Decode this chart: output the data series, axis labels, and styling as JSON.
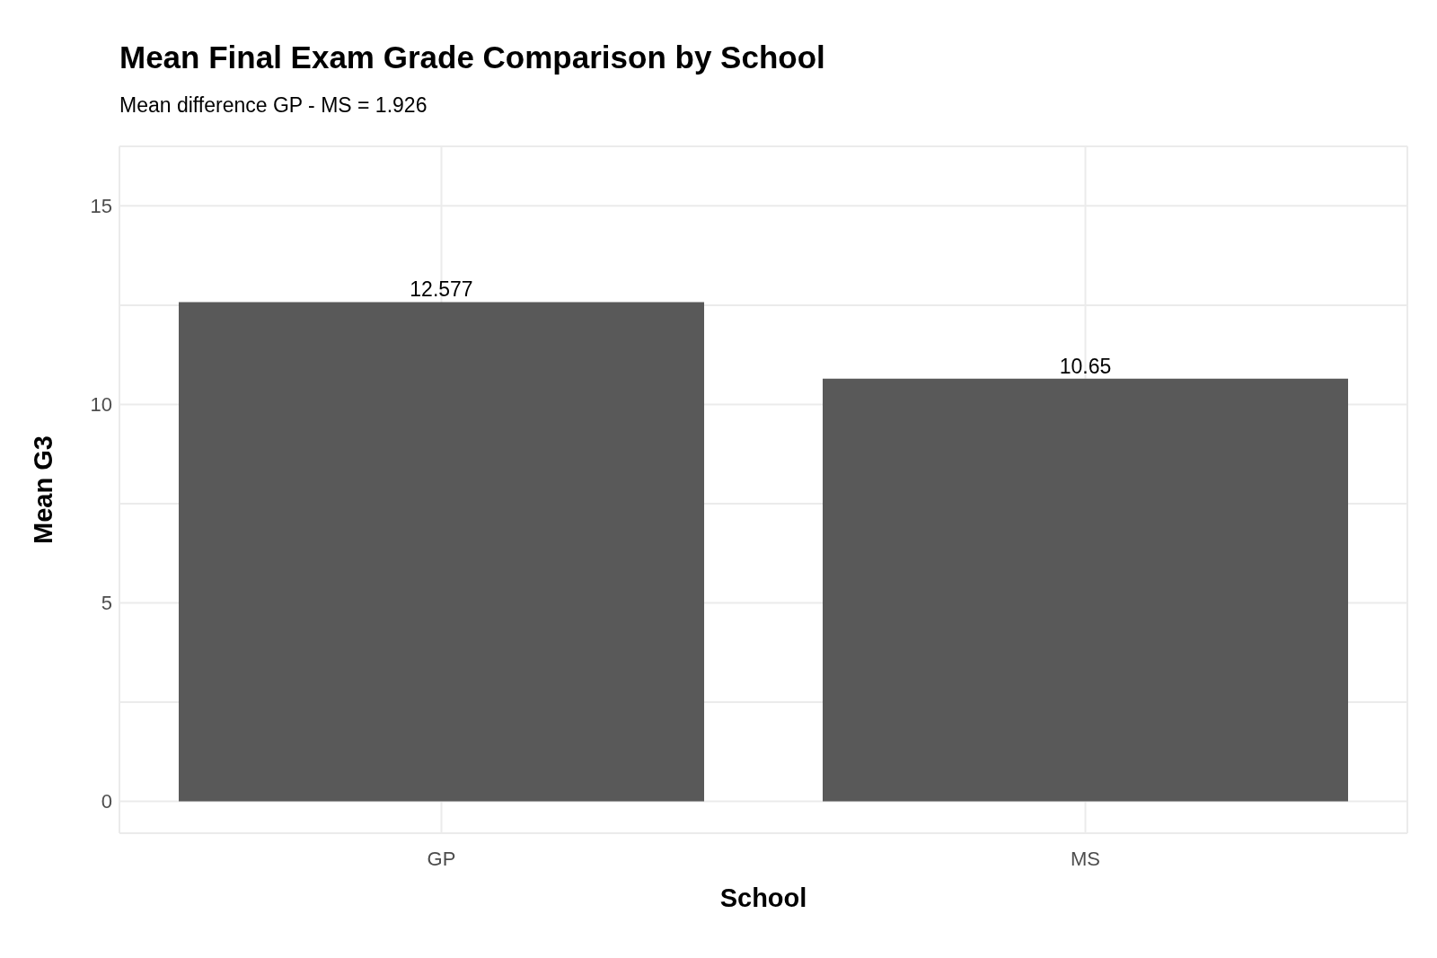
{
  "chart_data": {
    "type": "bar",
    "title": "Mean Final Exam Grade Comparison by School",
    "subtitle": "Mean difference GP - MS = 1.926",
    "xlabel": "School",
    "ylabel": "Mean G3",
    "categories": [
      "GP",
      "MS"
    ],
    "values": [
      12.577,
      10.65
    ],
    "color": "#595959",
    "data_labels": true,
    "ylim": [
      -0.8,
      16.5
    ],
    "yticks": [
      0,
      {
        "value": 2.5,
        "label": null
      },
      5,
      {
        "value": 7.5,
        "label": null
      },
      10,
      {
        "value": 12.5,
        "label": null
      },
      15
    ],
    "grid": true
  }
}
